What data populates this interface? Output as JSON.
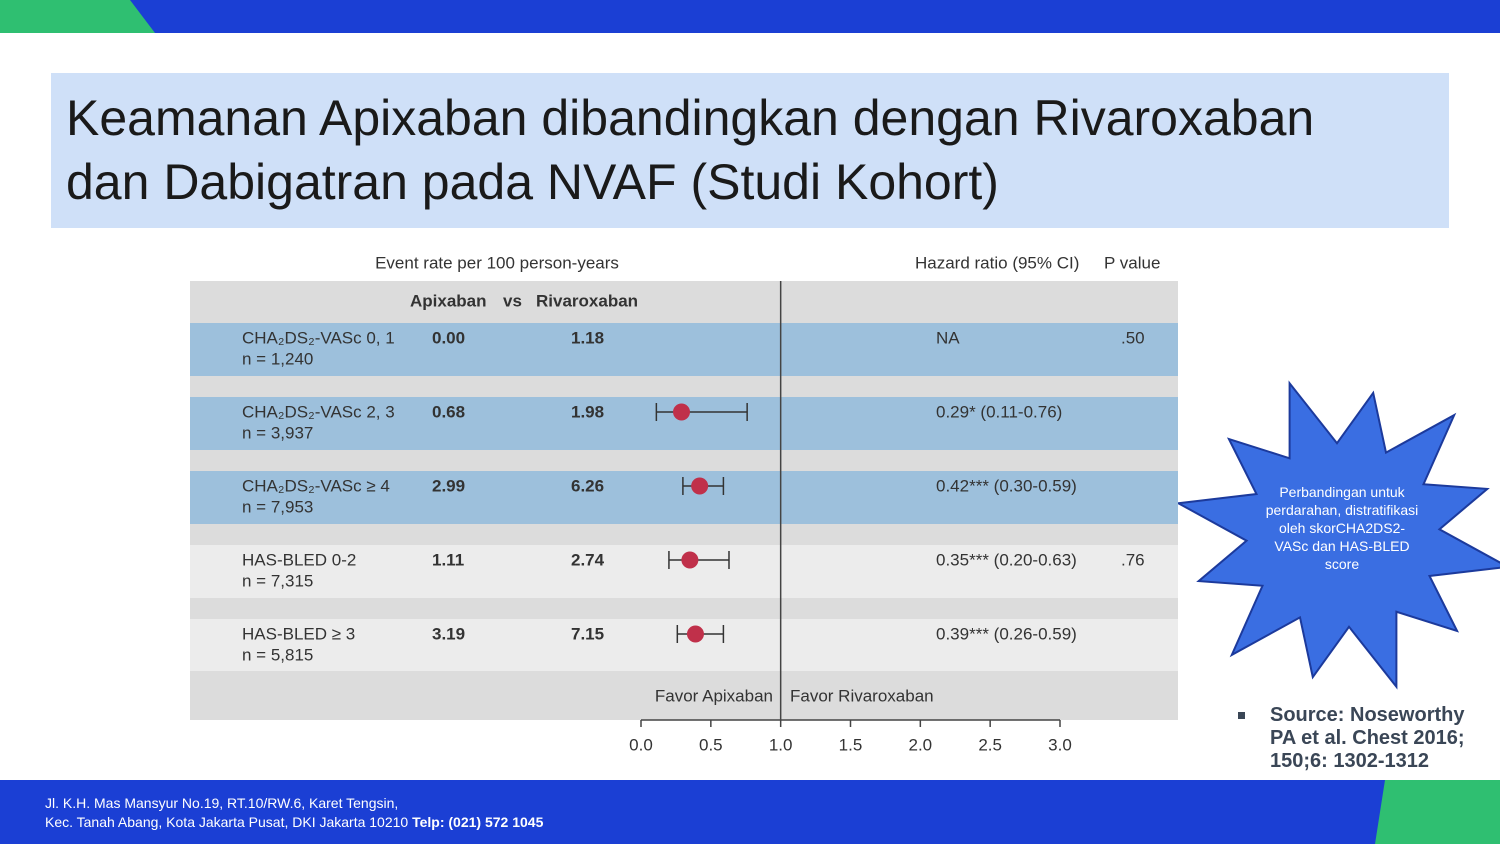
{
  "slide": {
    "title_lines": [
      "Keamanan Apixaban dibandingkan dengan Rivaroxaban",
      "dan Dabigatran pada NVAF (Studi Kohort)"
    ],
    "callout": "Perbandingan untuk perdarahan, distratifikasi oleh skorCHA2DS2-VASc dan HAS-BLED score",
    "source_lines": [
      "Source: Noseworthy",
      "PA et al. Chest 2016;",
      "150;6: 1302-1312"
    ],
    "footer_lines": [
      "Jl. K.H. Mas Mansyur No.19, RT.10/RW.6, Karet Tengsin,",
      "Kec. Tanah Abang, Kota Jakarta Pusat, DKI Jakarta 10210"
    ],
    "footer_phone": "Telp: (021) 572 1045"
  },
  "chart_data": {
    "type": "forest",
    "header_left": "Event rate per 100 person-years",
    "header_right": "Hazard ratio (95% CI)",
    "header_p": "P value",
    "group_a": "Apixaban",
    "vs": "vs",
    "group_b": "Rivaroxaban",
    "rows": [
      {
        "label": "CHA₂DS₂-VASc 0, 1",
        "n": "n = 1,240",
        "a": "0.00",
        "b": "1.18",
        "hr": null,
        "lo": null,
        "hi": null,
        "hr_label": "NA",
        "p": ".50"
      },
      {
        "label": "CHA₂DS₂-VASc 2, 3",
        "n": "n = 3,937",
        "a": "0.68",
        "b": "1.98",
        "hr": 0.29,
        "lo": 0.11,
        "hi": 0.76,
        "hr_label": "0.29* (0.11-0.76)",
        "p": null
      },
      {
        "label": "CHA₂DS₂-VASc ≥ 4",
        "n": "n = 7,953",
        "a": "2.99",
        "b": "6.26",
        "hr": 0.42,
        "lo": 0.3,
        "hi": 0.59,
        "hr_label": "0.42*** (0.30-0.59)",
        "p": null
      },
      {
        "label": "HAS-BLED 0-2",
        "n": "n = 7,315",
        "a": "1.11",
        "b": "2.74",
        "hr": 0.35,
        "lo": 0.2,
        "hi": 0.63,
        "hr_label": "0.35*** (0.20-0.63)",
        "p": ".76"
      },
      {
        "label": "HAS-BLED ≥ 3",
        "n": "n = 5,815",
        "a": "3.19",
        "b": "7.15",
        "hr": 0.39,
        "lo": 0.26,
        "hi": 0.59,
        "hr_label": "0.39*** (0.26-0.59)",
        "p": null
      }
    ],
    "favor_left": "Favor Apixaban",
    "favor_right": "Favor Rivaroxaban",
    "xlim": [
      0,
      3
    ],
    "xticks": [
      {
        "value": 0,
        "label": "0.0"
      },
      0.5,
      {
        "value": 1,
        "label": "1.0"
      },
      1.5,
      {
        "value": 2,
        "label": "2.0"
      },
      2.5,
      {
        "value": 3,
        "label": "3.0"
      }
    ],
    "ref_line": 1,
    "color": "#c0304a"
  }
}
